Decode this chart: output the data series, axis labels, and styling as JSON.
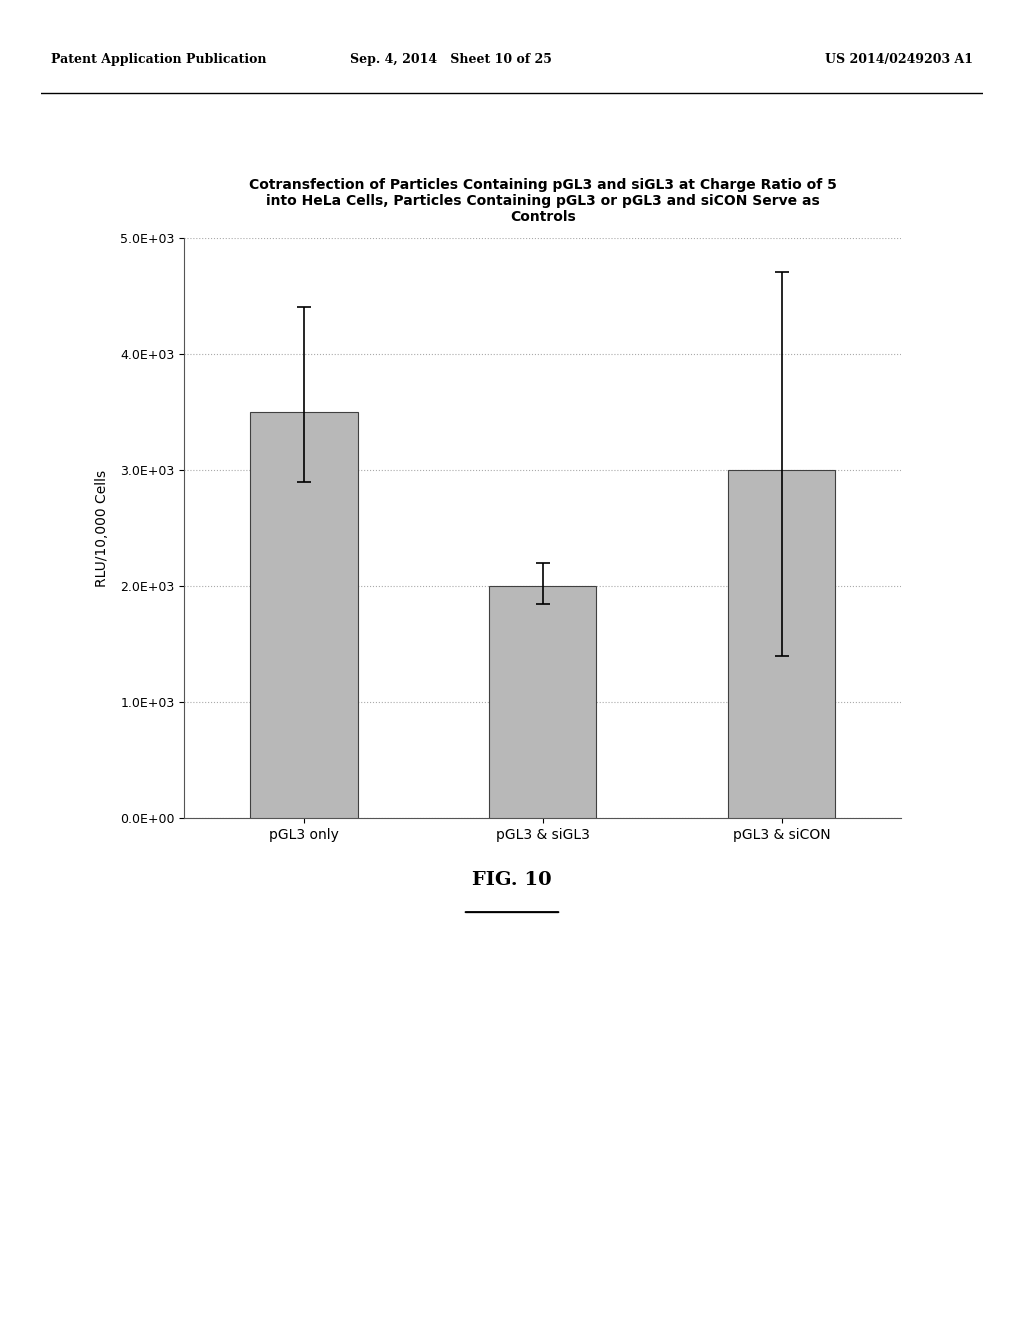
{
  "title_line1": "Cotransfection of Particles Containing pGL3 and siGL3 at Charge Ratio of 5",
  "title_line2": "into HeLa Cells, Particles Containing pGL3 or pGL3 and siCON Serve as",
  "title_line3": "Controls",
  "categories": [
    "pGL3 only",
    "pGL3 & siGL3",
    "pGL3 & siCON"
  ],
  "values": [
    3500,
    2000,
    3000
  ],
  "error_upper": [
    900,
    200,
    1700
  ],
  "error_lower": [
    600,
    150,
    1600
  ],
  "ylabel": "RLU/10,000 Cells",
  "ylim": [
    0,
    5000
  ],
  "yticks": [
    0,
    1000,
    2000,
    3000,
    4000,
    5000
  ],
  "ytick_labels": [
    "0.0E+00",
    "1.0E+03",
    "2.0E+03",
    "3.0E+03",
    "4.0E+03",
    "5.0E+03"
  ],
  "bar_color": "#b8b8b8",
  "bar_edge_color": "#404040",
  "background_color": "#ffffff",
  "fig_caption": "FIG. 10",
  "header_left": "Patent Application Publication",
  "header_center": "Sep. 4, 2014   Sheet 10 of 25",
  "header_right": "US 2014/0249203 A1",
  "grid_color": "#aaaaaa"
}
